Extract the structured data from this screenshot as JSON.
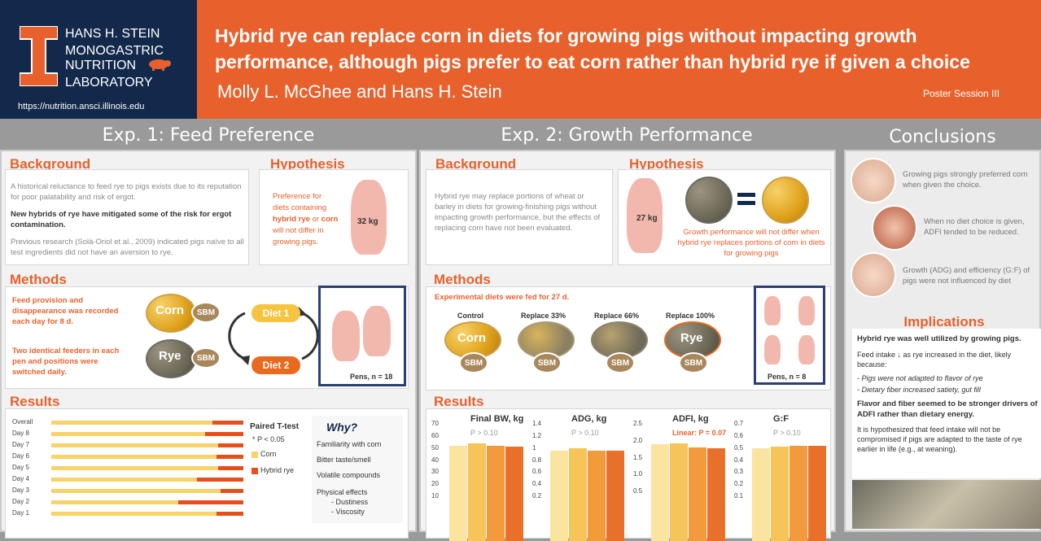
{
  "header": {
    "lab": [
      "HANS H. STEIN",
      "MONOGASTRIC",
      "NUTRITION",
      "LABORATORY"
    ],
    "url": "https://nutrition.ansci.illinois.edu",
    "title_line1": "Hybrid rye can replace corn in diets for growing pigs without impacting growth",
    "title_line2": "performance, although pigs prefer to eat corn rather than hybrid rye if given a choice",
    "authors": "Molly L. McGhee and Hans H. Stein",
    "session": "Poster Session III"
  },
  "exp1": {
    "heading": "Exp. 1: Feed Preference",
    "background_h": "Background",
    "bg1": "A historical reluctance to feed rye to pigs exists due to its reputation for poor palatability and risk of ergot.",
    "bg2": "New hybrids of rye have mitigated some of the risk for ergot contamination.",
    "bg3": "Previous research (Solà-Oriol et al., 2009) indicated pigs naïve to all test ingredients did not have an aversion to rye.",
    "hyp_h": "Hypothesis",
    "hyp1": "Preference for",
    "hyp2": "diets containing",
    "hyp3": "hybrid rye",
    "hyp3b": " or ",
    "hyp3c": "corn",
    "hyp4": "will not differ in",
    "hyp5": "growing pigs.",
    "weight": "32 kg",
    "methods_h": "Methods",
    "m1": "Feed provision and disappearance was recorded each day for 8 d.",
    "m2": "Two identical feeders in each pen and positions were switched daily.",
    "corn": "Corn",
    "rye": "Rye",
    "sbm": "SBM",
    "diet1": "Diet 1",
    "diet2": "Diet 2",
    "pens": "Pens, n = 18",
    "results_h": "Results",
    "days": [
      "Overall",
      "Day 8",
      "Day 7",
      "Day 6",
      "Day 5",
      "Day 4",
      "Day 3",
      "Day 2",
      "Day 1"
    ],
    "legend_title": "Paired T-test",
    "legend_p": "* P < 0.05",
    "legend_corn": "Corn",
    "legend_rye": "Hybrid rye",
    "why": "Why?",
    "why_items": [
      "Familiarity with corn",
      "Bitter taste/smell",
      "Volatile compounds",
      "Physical effects"
    ],
    "why_sub": [
      "- Dustiness",
      "- Viscosity"
    ]
  },
  "exp2": {
    "heading": "Exp. 2: Growth Performance",
    "background_h": "Background",
    "bg": "Hybrid rye may replace portions of wheat or barley in diets for growing-finishing pigs without impacting growth performance, but the effects of replacing corn have not been evaluated.",
    "hyp_h": "Hypothesis",
    "weight": "27 kg",
    "hyp_text": "Growth performance will not differ when hybrid rye replaces portions of corn in diets for growing pigs",
    "methods_h": "Methods",
    "fed": "Experimental diets were fed for 27 d.",
    "diets": [
      "Control",
      "Replace 33%",
      "Replace 66%",
      "Replace 100%"
    ],
    "corn": "Corn",
    "rye": "Rye",
    "sbm": "SBM",
    "pens": "Pens, n = 8",
    "results_h": "Results",
    "charts": [
      {
        "title": "Final BW, kg",
        "p": "P > 0.10",
        "yticks": [
          "70",
          "60",
          "50",
          "40",
          "30",
          "20",
          "10"
        ]
      },
      {
        "title": "ADG, kg",
        "p": "P > 0.10",
        "yticks": [
          "1.4",
          "1.2",
          "1",
          "0.8",
          "0.6",
          "0.4",
          "0.2"
        ]
      },
      {
        "title": "ADFI, kg",
        "p": "Linear: P = 0.07",
        "yticks": [
          "2.5",
          "2.0",
          "1.5",
          "1.0",
          "0.5"
        ]
      },
      {
        "title": "G:F",
        "p": "P > 0.10",
        "yticks": [
          "0.7",
          "0.6",
          "0.5",
          "0.4",
          "0.3",
          "0.2",
          "0.1"
        ]
      }
    ]
  },
  "chart_data": [
    {
      "type": "bar",
      "title": "Final BW, kg",
      "ylim": [
        0,
        70
      ],
      "categories": [
        "Control",
        "Replace 33%",
        "Replace 66%",
        "Replace 100%"
      ],
      "values": [
        52,
        54,
        52,
        51
      ]
    },
    {
      "type": "bar",
      "title": "ADG, kg",
      "ylim": [
        0,
        1.4
      ],
      "categories": [
        "Control",
        "Replace 33%",
        "Replace 66%",
        "Replace 100%"
      ],
      "values": [
        0.96,
        0.99,
        0.95,
        0.95
      ]
    },
    {
      "type": "bar",
      "title": "ADFI, kg",
      "ylim": [
        0,
        2.5
      ],
      "categories": [
        "Control",
        "Replace 33%",
        "Replace 66%",
        "Replace 100%"
      ],
      "values": [
        1.9,
        1.92,
        1.8,
        1.78
      ]
    },
    {
      "type": "bar",
      "title": "G:F",
      "ylim": [
        0,
        0.7
      ],
      "categories": [
        "Control",
        "Replace 33%",
        "Replace 66%",
        "Replace 100%"
      ],
      "values": [
        0.5,
        0.51,
        0.52,
        0.52
      ]
    },
    {
      "type": "bar",
      "title": "Feed preference",
      "orientation": "horizontal",
      "categories": [
        "Overall",
        "Day 8",
        "Day 7",
        "Day 6",
        "Day 5",
        "Day 4",
        "Day 3",
        "Day 2",
        "Day 1"
      ],
      "series": [
        {
          "name": "Corn",
          "values": [
            84,
            80,
            87,
            86,
            87,
            76,
            88,
            66,
            86
          ]
        },
        {
          "name": "Hybrid rye",
          "values": [
            16,
            20,
            13,
            14,
            13,
            24,
            12,
            34,
            14
          ]
        }
      ]
    }
  ],
  "conclusions": {
    "heading": "Conclusions",
    "c1": "Growing pigs strongly preferred corn when given the choice.",
    "c2": "When no diet choice is given, ADFI tended to be reduced.",
    "c3": "Growth (ADG) and efficiency (G:F) of pigs were not influenced by diet",
    "impl_h": "Implications",
    "i1": "Hybrid rye was well utilized by growing pigs.",
    "i2": "Feed intake ↓ as rye increased in the diet, likely because:",
    "i3": "-   Pigs were not adapted to flavor of rye",
    "i4": "-   Dietary fiber increased satiety, gut fill",
    "i5": "Flavor and fiber seemed to be stronger drivers of ADFI rather than dietary energy.",
    "i6": "It is hypothesized that feed intake will not be compromised if pigs are adapted to the taste of rye earlier in life (e.g., at weaning)."
  },
  "colors": {
    "orange": "#e8612c",
    "navy": "#13294b",
    "corn": "#f7d36a",
    "rye": "#e84e1b"
  }
}
